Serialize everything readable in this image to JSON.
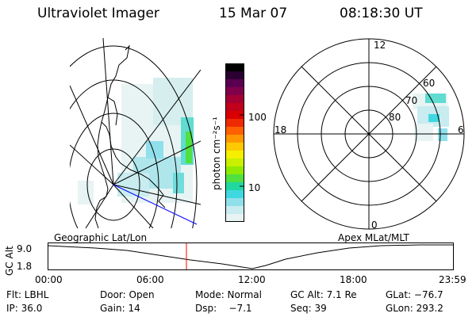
{
  "header": {
    "instrument": "Ultraviolet Imager",
    "date": "15 Mar 07",
    "time": "08:18:30 UT"
  },
  "colorbar": {
    "unit_label": "photon cm⁻²s⁻¹",
    "ticks": [
      "100",
      "10"
    ],
    "colors": [
      "#000000",
      "#2a0030",
      "#5a0050",
      "#80004a",
      "#a40034",
      "#c0001c",
      "#d80000",
      "#ee2a00",
      "#ff6000",
      "#ff9800",
      "#ffc800",
      "#f4f000",
      "#c8f000",
      "#90ea00",
      "#50e040",
      "#20d8a0",
      "#40d8e0",
      "#90e0ec",
      "#c8ecf0",
      "#e8f4f4"
    ]
  },
  "geo_map": {
    "label": "Geographic Lat/Lon"
  },
  "polar_plot": {
    "label": "Apex MLat/MLT",
    "mlt_labels": {
      "top": "12",
      "left": "18",
      "right": "6",
      "bottom": "0"
    },
    "lat_labels": [
      "60",
      "70",
      "80"
    ]
  },
  "altitude_strip": {
    "axis_label": "GC Alt",
    "ytick_top": "9.0",
    "ytick_bottom": "1.8",
    "time_ticks": [
      "00:00",
      "06:00",
      "12:00",
      "18:00",
      "23:59"
    ]
  },
  "footer": {
    "row1": {
      "filter": "Flt: LBHL",
      "door": "Door: Open",
      "mode": "Mode: Normal",
      "gc_alt": "GC Alt: 7.1 Re",
      "glat": "GLat: −76.7"
    },
    "row2": {
      "ip": "IP: 36.0",
      "gain": "Gain: 14",
      "dsp": "Dsp:    −7.1",
      "seq": "Seq: 39",
      "glon": "GLon: 293.2"
    }
  }
}
